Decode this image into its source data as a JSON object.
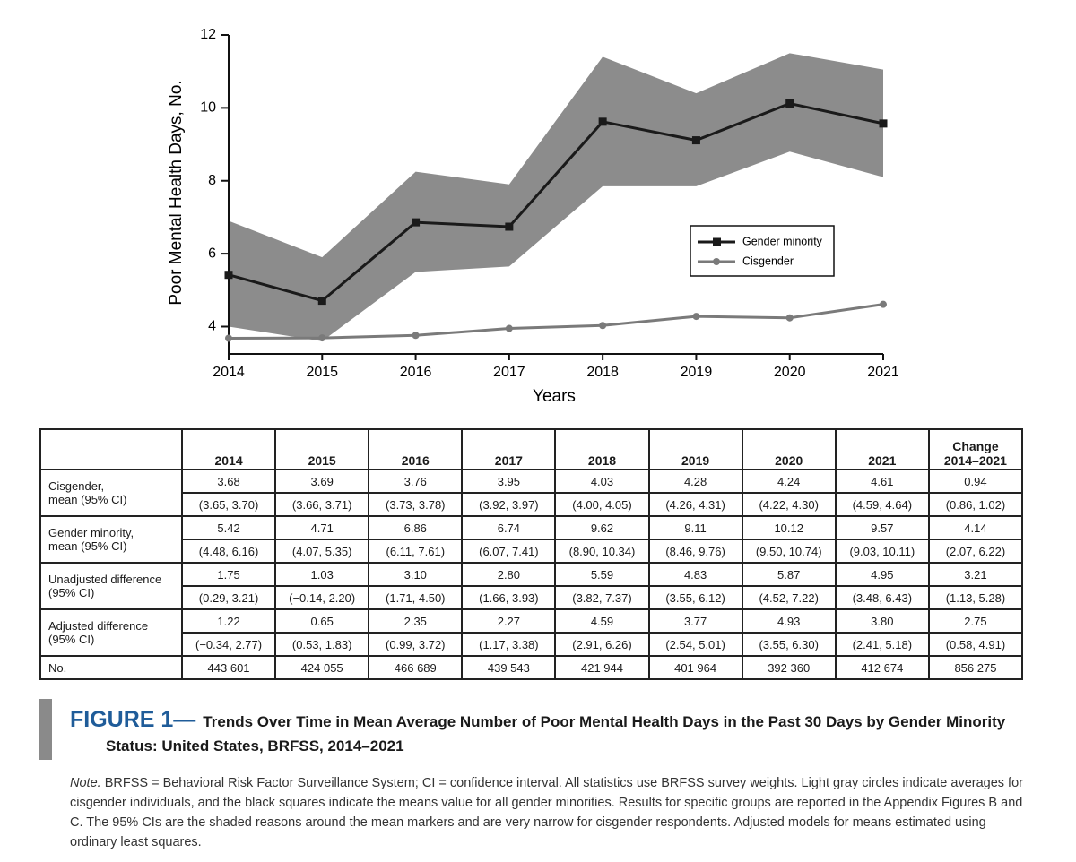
{
  "chart_data": {
    "type": "line",
    "x": [
      2014,
      2015,
      2016,
      2017,
      2018,
      2019,
      2020,
      2021
    ],
    "xlim": [
      2014,
      2021
    ],
    "xticks": [
      2014,
      2015,
      2016,
      2017,
      2018,
      2019,
      2020,
      2021
    ],
    "ylim": [
      3.25,
      12
    ],
    "yticks": [
      4,
      6,
      8,
      10,
      12
    ],
    "x_label": "Years",
    "y_label": "Poor Mental Health Days, No.",
    "legend": "right",
    "series": [
      {
        "name": "Gender minority",
        "color": "#1a1a1a",
        "marker": "square",
        "values": [
          5.42,
          4.71,
          6.86,
          6.74,
          9.62,
          9.11,
          10.12,
          9.57
        ],
        "band_color": "#8c8c8c",
        "band_lower": [
          4.0,
          3.6,
          5.5,
          5.65,
          7.85,
          7.85,
          8.8,
          8.1
        ],
        "band_upper": [
          6.9,
          5.9,
          8.25,
          7.9,
          11.4,
          10.4,
          11.5,
          11.05
        ]
      },
      {
        "name": "Cisgender",
        "color": "#7a7a7a",
        "marker": "circle",
        "values": [
          3.68,
          3.69,
          3.76,
          3.95,
          4.03,
          4.28,
          4.24,
          4.61
        ]
      }
    ]
  },
  "table": {
    "columns": [
      "2014",
      "2015",
      "2016",
      "2017",
      "2018",
      "2019",
      "2020",
      "2021",
      "Change\n2014–2021"
    ],
    "rows": [
      {
        "label": "Cisgender,\nmean (95% CI)",
        "means": [
          "3.68",
          "3.69",
          "3.76",
          "3.95",
          "4.03",
          "4.28",
          "4.24",
          "4.61",
          "0.94"
        ],
        "cis": [
          "(3.65, 3.70)",
          "(3.66, 3.71)",
          "(3.73, 3.78)",
          "(3.92, 3.97)",
          "(4.00, 4.05)",
          "(4.26, 4.31)",
          "(4.22, 4.30)",
          "(4.59, 4.64)",
          "(0.86, 1.02)"
        ]
      },
      {
        "label": "Gender minority,\nmean (95% CI)",
        "means": [
          "5.42",
          "4.71",
          "6.86",
          "6.74",
          "9.62",
          "9.11",
          "10.12",
          "9.57",
          "4.14"
        ],
        "cis": [
          "(4.48, 6.16)",
          "(4.07, 5.35)",
          "(6.11, 7.61)",
          "(6.07, 7.41)",
          "(8.90, 10.34)",
          "(8.46, 9.76)",
          "(9.50, 10.74)",
          "(9.03, 10.11)",
          "(2.07, 6.22)"
        ]
      },
      {
        "label": "Unadjusted difference\n(95% CI)",
        "means": [
          "1.75",
          "1.03",
          "3.10",
          "2.80",
          "5.59",
          "4.83",
          "5.87",
          "4.95",
          "3.21"
        ],
        "cis": [
          "(0.29, 3.21)",
          "(−0.14, 2.20)",
          "(1.71, 4.50)",
          "(1.66, 3.93)",
          "(3.82, 7.37)",
          "(3.55, 6.12)",
          "(4.52, 7.22)",
          "(3.48, 6.43)",
          "(1.13, 5.28)"
        ]
      },
      {
        "label": "Adjusted difference\n(95% CI)",
        "means": [
          "1.22",
          "0.65",
          "2.35",
          "2.27",
          "4.59",
          "3.77",
          "4.93",
          "3.80",
          "2.75"
        ],
        "cis": [
          "(−0.34, 2.77)",
          "(0.53, 1.83)",
          "(0.99, 3.72)",
          "(1.17, 3.38)",
          "(2.91, 6.26)",
          "(2.54, 5.01)",
          "(3.55, 6.30)",
          "(2.41, 5.18)",
          "(0.58, 4.91)"
        ]
      }
    ],
    "count_row": {
      "label": "No.",
      "values": [
        "443 601",
        "424 055",
        "466 689",
        "439 543",
        "421 944",
        "401 964",
        "392 360",
        "412 674",
        "856 275"
      ]
    }
  },
  "caption": {
    "figure": "FIGURE 1—",
    "title": "Trends Over Time in Mean Average Number of Poor Mental Health Days in the Past 30 Days by Gender Minority Status: United States, BRFSS, 2014–2021"
  },
  "note": {
    "label": "Note.",
    "text": " BRFSS = Behavioral Risk Factor Surveillance System; CI = confidence interval. All statistics use BRFSS survey weights. Light gray circles indicate averages for cisgender individuals, and the black squares indicate the means value for all gender minorities. Results for specific groups are reported in the Appendix Figures B and C. The 95% CIs are the shaded reasons around the mean markers and are very narrow for cisgender respondents. Adjusted models for means estimated using ordinary least squares."
  }
}
